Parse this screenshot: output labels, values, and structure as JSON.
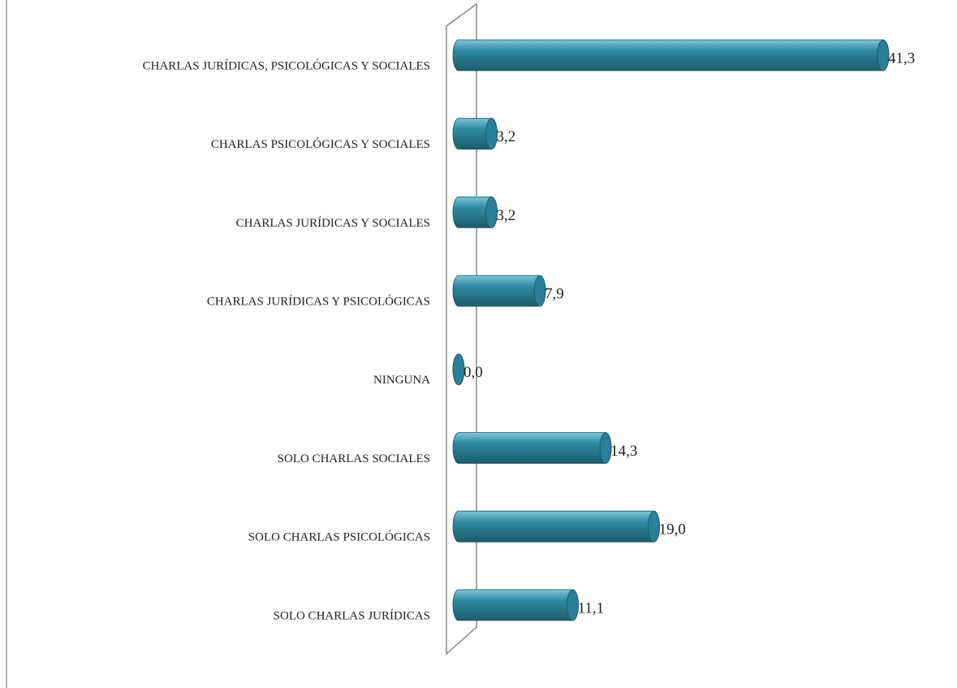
{
  "chart_data": {
    "type": "bar",
    "orientation": "horizontal",
    "categories": [
      "CHARLAS JURÍDICAS, PSICOLÓGICAS Y SOCIALES",
      "CHARLAS PSICOLÓGICAS Y SOCIALES",
      "CHARLAS JURÍDICAS Y SOCIALES",
      "CHARLAS JURÍDICAS Y PSICOLÓGICAS",
      "NINGUNA",
      "SOLO CHARLAS SOCIALES",
      "SOLO CHARLAS PSICOLÓGICAS",
      "SOLO CHARLAS JURÍDICAS"
    ],
    "values": [
      41.3,
      3.2,
      3.2,
      7.9,
      0.0,
      14.3,
      19.0,
      11.1
    ],
    "value_labels": [
      "41,3",
      "3,2",
      "3,2",
      "7,9",
      "0,0",
      "14,3",
      "19,0",
      "11,1"
    ],
    "color": "#2a7f96"
  }
}
